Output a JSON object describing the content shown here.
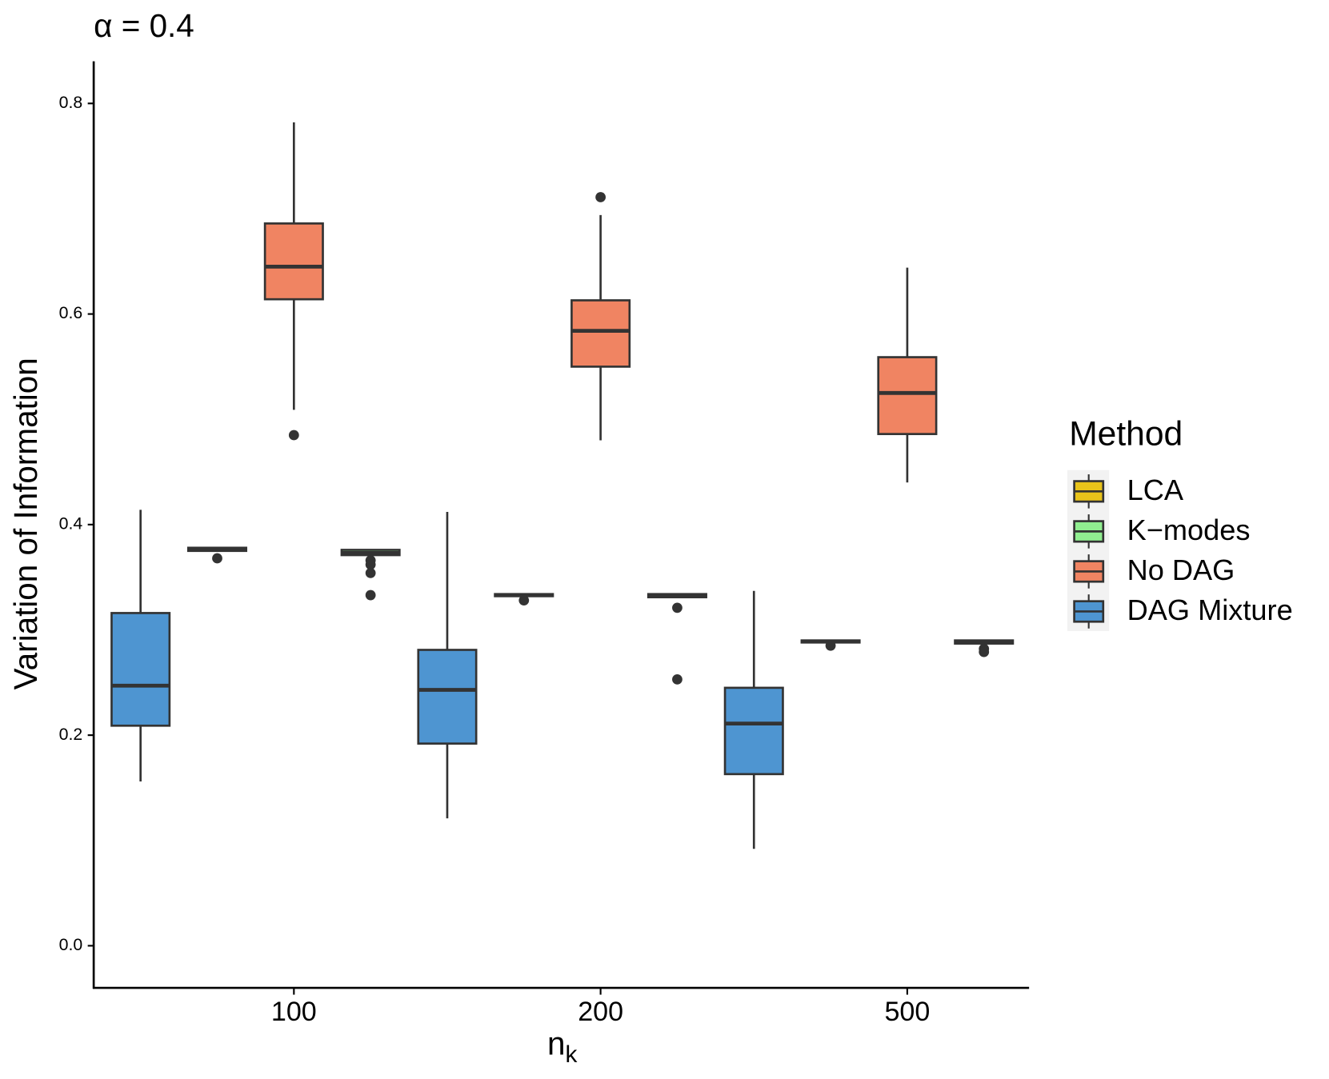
{
  "chart_data": {
    "type": "box",
    "title": "α = 0.4",
    "y_label": "Variation of Information",
    "x_label": {
      "text": "n",
      "subscript": "k"
    },
    "legend_title": "Method",
    "categories": [
      "100",
      "200",
      "500"
    ],
    "ylim": [
      -0.04,
      0.84
    ],
    "yticks": [
      {
        "value": 0,
        "label": "0.0"
      },
      0.2,
      0.4,
      0.6,
      0.8
    ],
    "legend": "right",
    "dodge_order": [
      3,
      0,
      2,
      1
    ],
    "series": [
      {
        "name": "LCA",
        "color": "#e8c31a",
        "values": [
          {
            "min": 0.375,
            "q1": 0.375,
            "median": 0.376,
            "q3": 0.378,
            "max": 0.378,
            "outliers": [
              0.368
            ]
          },
          {
            "min": 0.332,
            "q1": 0.332,
            "median": 0.333,
            "q3": 0.334,
            "max": 0.334,
            "outliers": [
              0.328
            ]
          },
          {
            "min": 0.288,
            "q1": 0.288,
            "median": 0.289,
            "q3": 0.29,
            "max": 0.29,
            "outliers": [
              0.285
            ]
          }
        ]
      },
      {
        "name": "K−modes",
        "color": "#90ee90",
        "values": [
          {
            "min": 0.371,
            "q1": 0.371,
            "median": 0.373,
            "q3": 0.376,
            "max": 0.376,
            "outliers": [
              0.366,
              0.362,
              0.354,
              0.333
            ]
          },
          {
            "min": 0.331,
            "q1": 0.331,
            "median": 0.332,
            "q3": 0.334,
            "max": 0.334,
            "outliers": [
              0.321,
              0.253
            ]
          },
          {
            "min": 0.287,
            "q1": 0.287,
            "median": 0.288,
            "q3": 0.29,
            "max": 0.29,
            "outliers": [
              0.282,
              0.279
            ]
          }
        ]
      },
      {
        "name": "No DAG",
        "color": "#f08462",
        "values": [
          {
            "min": 0.509,
            "q1": 0.614,
            "median": 0.645,
            "q3": 0.686,
            "max": 0.782,
            "outliers": [
              0.485
            ]
          },
          {
            "min": 0.48,
            "q1": 0.55,
            "median": 0.584,
            "q3": 0.613,
            "max": 0.694,
            "outliers": [
              0.711
            ]
          },
          {
            "min": 0.44,
            "q1": 0.486,
            "median": 0.525,
            "q3": 0.559,
            "max": 0.644,
            "outliers": []
          }
        ]
      },
      {
        "name": "DAG Mixture",
        "color": "#4e95d1",
        "values": [
          {
            "min": 0.156,
            "q1": 0.209,
            "median": 0.247,
            "q3": 0.316,
            "max": 0.414,
            "outliers": []
          },
          {
            "min": 0.121,
            "q1": 0.192,
            "median": 0.243,
            "q3": 0.281,
            "max": 0.412,
            "outliers": []
          },
          {
            "min": 0.092,
            "q1": 0.163,
            "median": 0.211,
            "q3": 0.245,
            "max": 0.337,
            "outliers": []
          }
        ]
      }
    ]
  }
}
